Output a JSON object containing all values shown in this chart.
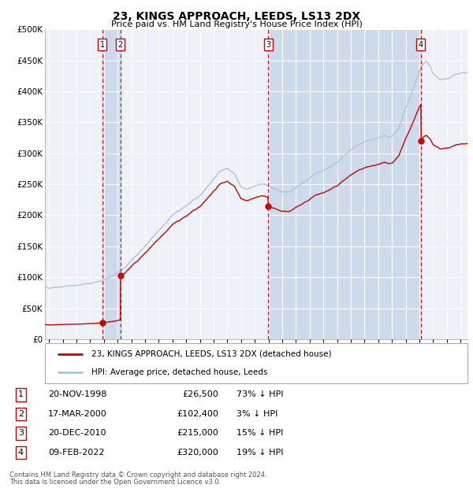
{
  "title": "23, KINGS APPROACH, LEEDS, LS13 2DX",
  "subtitle": "Price paid vs. HM Land Registry's House Price Index (HPI)",
  "legend_line1": "23, KINGS APPROACH, LEEDS, LS13 2DX (detached house)",
  "legend_line2": "HPI: Average price, detached house, Leeds",
  "footer1": "Contains HM Land Registry data © Crown copyright and database right 2024.",
  "footer2": "This data is licensed under the Open Government Licence v3.0.",
  "transactions": [
    {
      "num": 1,
      "date": "20-NOV-1998",
      "price": 26500,
      "pct": "73% ↓ HPI",
      "year": 1998.89
    },
    {
      "num": 2,
      "date": "17-MAR-2000",
      "price": 102400,
      "pct": "3% ↓ HPI",
      "year": 2000.21
    },
    {
      "num": 3,
      "date": "20-DEC-2010",
      "price": 215000,
      "pct": "15% ↓ HPI",
      "year": 2010.97
    },
    {
      "num": 4,
      "date": "09-FEB-2022",
      "price": 320000,
      "pct": "19% ↓ HPI",
      "year": 2022.11
    }
  ],
  "hpi_color": "#a8c4de",
  "price_color": "#cc0000",
  "plot_bg": "#eef2f8",
  "grid_color": "#ffffff",
  "dashed_color": "#cc0000",
  "shade_color": "#ccdaec",
  "ylim": [
    0,
    500000
  ],
  "xlim_start": 1994.7,
  "xlim_end": 2025.5,
  "yticks": [
    0,
    50000,
    100000,
    150000,
    200000,
    250000,
    300000,
    350000,
    400000,
    450000,
    500000
  ],
  "ylabel_fmt": [
    "£0",
    "£50K",
    "£100K",
    "£150K",
    "£200K",
    "£250K",
    "£300K",
    "£350K",
    "£400K",
    "£450K",
    "£500K"
  ]
}
